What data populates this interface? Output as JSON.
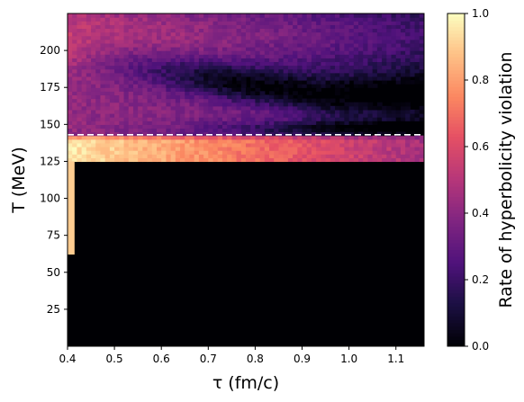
{
  "chart_data": {
    "type": "heatmap",
    "xlabel": "τ (fm/c)",
    "ylabel": "T (MeV)",
    "colorbar_label": "Rate of hyperbolicity violation",
    "colormap": "magma",
    "xlim": [
      0.4,
      1.16
    ],
    "ylim": [
      0,
      225
    ],
    "xticks": [
      0.4,
      0.5,
      0.6,
      0.7,
      0.8,
      0.9,
      1.0,
      1.1
    ],
    "xtick_labels": [
      "0.4",
      "0.5",
      "0.6",
      "0.7",
      "0.8",
      "0.9",
      "1.0",
      "1.1"
    ],
    "yticks": [
      25,
      50,
      75,
      100,
      125,
      150,
      175,
      200
    ],
    "ytick_labels": [
      "25",
      "50",
      "75",
      "100",
      "125",
      "150",
      "175",
      "200"
    ],
    "colorbar_range": [
      0.0,
      1.0
    ],
    "colorbar_ticks": [
      0.0,
      0.2,
      0.4,
      0.6,
      0.8,
      1.0
    ],
    "colorbar_tick_labels": [
      "0.0",
      "0.2",
      "0.4",
      "0.6",
      "0.8",
      "1.0"
    ],
    "reference_line": {
      "orientation": "horizontal",
      "style": "dashed",
      "color": "#ffffff",
      "y": 143
    },
    "regions": [
      {
        "description": "zero region",
        "tau": [
          0.4,
          1.16
        ],
        "T": [
          0,
          125
        ],
        "rate": 0.0
      },
      {
        "description": "early-time strip",
        "tau": [
          0.4,
          0.415
        ],
        "T": [
          62,
          125
        ],
        "rate": 0.9
      },
      {
        "description": "near-transition band",
        "tau": [
          0.4,
          1.16
        ],
        "T": [
          125,
          143
        ],
        "rate_start": 0.95,
        "rate_end": 0.45
      },
      {
        "description": "high-temperature region",
        "tau": [
          0.4,
          1.16
        ],
        "T": [
          143,
          225
        ],
        "rate_range": [
          0.05,
          0.45
        ]
      }
    ]
  }
}
